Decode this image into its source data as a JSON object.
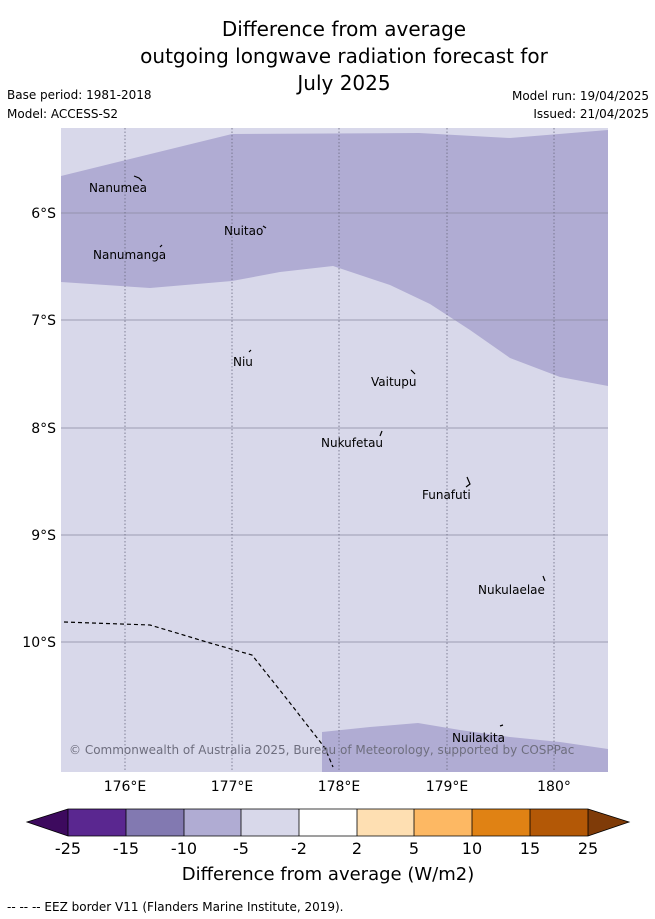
{
  "header": {
    "title_line1": "Difference from average",
    "title_line2": "outgoing longwave radiation forecast for",
    "title_line3": "July 2025",
    "base_period": "Base period: 1981-2018",
    "model": "Model: ACCESS-S2",
    "model_run": "Model run: 19/04/2025",
    "issued": "Issued: 21/04/2025"
  },
  "map": {
    "x_ticks": [
      "176°E",
      "177°E",
      "178°E",
      "179°E",
      "180°"
    ],
    "y_ticks": [
      "6°S",
      "7°S",
      "8°S",
      "9°S",
      "10°S"
    ],
    "islands": [
      "Nanumea",
      "Nuitao",
      "Nanumanga",
      "Niu",
      "Vaitupu",
      "Nukufetau",
      "Funafuti",
      "Nukulaelae",
      "Nuilakita"
    ],
    "copyright": "© Commonwealth of Australia 2025, Bureau of Meteorology, supported by COSPPac",
    "colors": {
      "anomaly_-10_-5": "#b0acd3",
      "anomaly_-5_-2": "#d8d8ea"
    }
  },
  "colorbar": {
    "ticks": [
      "-25",
      "-15",
      "-10",
      "-5",
      "-2",
      "2",
      "5",
      "10",
      "15",
      "25"
    ],
    "colors": [
      "#3d0a5e",
      "#5a2790",
      "#8279b1",
      "#b0acd3",
      "#d8d8ea",
      "#ffffff",
      "#fedfb2",
      "#fdb863",
      "#e08214",
      "#b35806",
      "#7f3b08"
    ],
    "label": "Difference from average (W/m2)"
  },
  "footer": {
    "eez_note": "-- -- -- EEZ border V11 (Flanders Marine Institute, 2019)."
  }
}
